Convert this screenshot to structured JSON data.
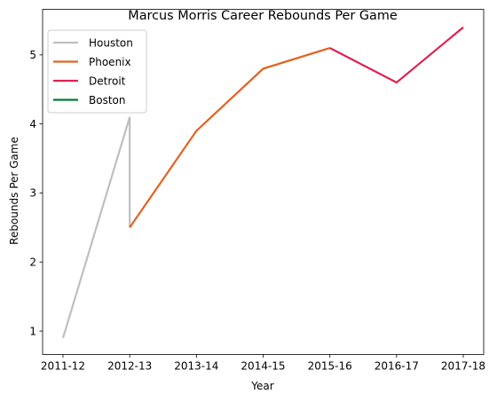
{
  "chart_data": {
    "type": "line",
    "title": "Marcus Morris  Career Rebounds Per Game",
    "xlabel": "Year",
    "ylabel": "Rebounds Per Game",
    "categories": [
      "2011-12",
      "2012-13",
      "2013-14",
      "2014-15",
      "2015-16",
      "2016-17",
      "2017-18"
    ],
    "yticks": [
      1,
      2,
      3,
      4,
      5
    ],
    "ylim": [
      0.66,
      5.66
    ],
    "grid": false,
    "legend_position": "upper-left",
    "series": [
      {
        "name": "Houston",
        "color": "#bfbfbf",
        "points": [
          [
            0,
            0.9
          ],
          [
            1,
            4.1
          ],
          [
            1,
            2.5
          ]
        ]
      },
      {
        "name": "Phoenix",
        "color": "#e56020",
        "points": [
          [
            1,
            2.5
          ],
          [
            2,
            3.9
          ],
          [
            3,
            4.8
          ],
          [
            4,
            5.1
          ]
        ]
      },
      {
        "name": "Detroit",
        "color": "#e0204f",
        "points": [
          [
            4,
            5.1
          ],
          [
            5,
            4.6
          ],
          [
            6,
            5.4
          ]
        ]
      },
      {
        "name": "Boston",
        "color": "#007a33",
        "points": []
      }
    ]
  }
}
